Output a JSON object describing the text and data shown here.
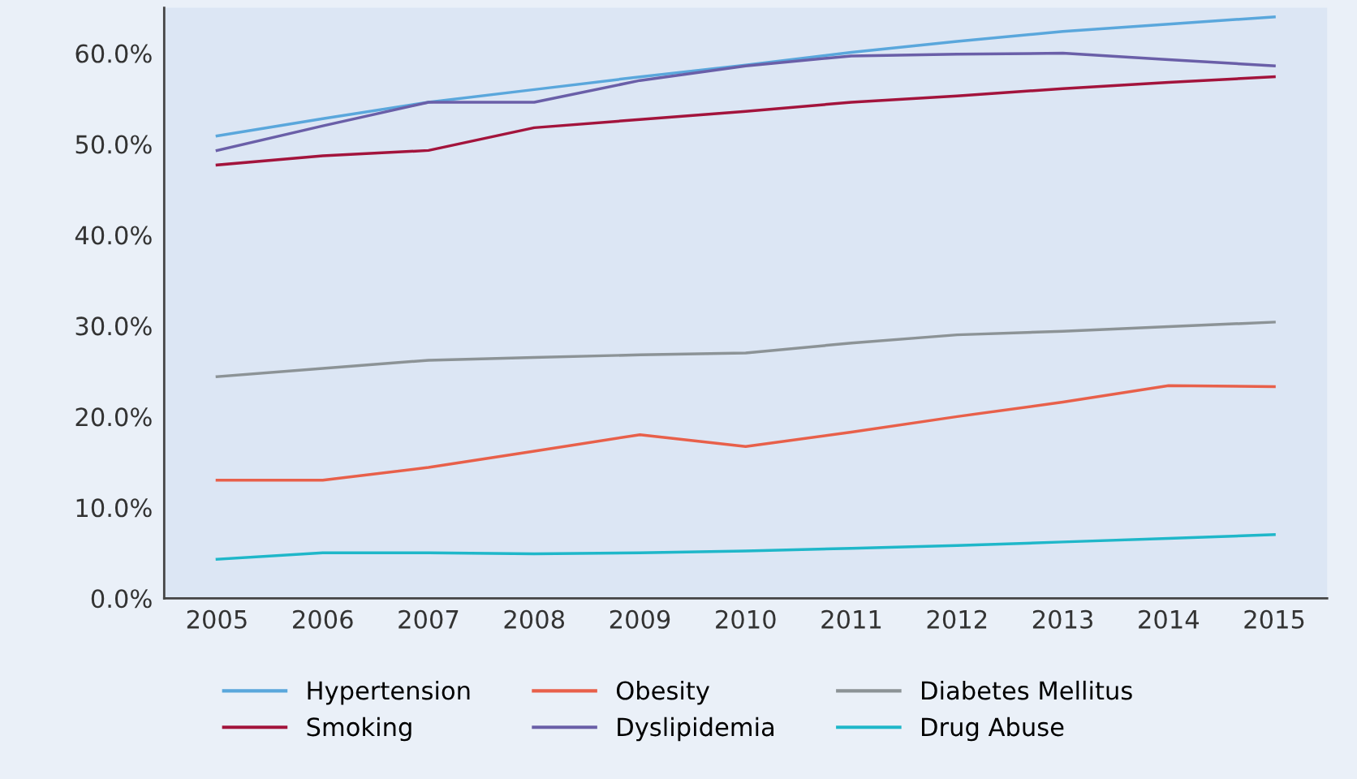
{
  "chart_data": {
    "type": "line",
    "categories": [
      "2005",
      "2006",
      "2007",
      "2008",
      "2009",
      "2010",
      "2011",
      "2012",
      "2013",
      "2014",
      "2015"
    ],
    "series": [
      {
        "name": "Hypertension",
        "color": "#5aa7dc",
        "values": [
          50.9,
          52.8,
          54.6,
          56.0,
          57.4,
          58.7,
          60.1,
          61.3,
          62.4,
          63.2,
          64.0
        ]
      },
      {
        "name": "Smoking",
        "color": "#a3143c",
        "values": [
          47.7,
          48.7,
          49.3,
          51.8,
          52.7,
          53.6,
          54.6,
          55.3,
          56.1,
          56.8,
          57.4
        ]
      },
      {
        "name": "Obesity",
        "color": "#e8604a",
        "values": [
          13.0,
          13.0,
          14.4,
          16.2,
          18.0,
          16.7,
          18.3,
          20.0,
          21.6,
          23.4,
          23.3
        ]
      },
      {
        "name": "Dyslipidemia",
        "color": "#6a5fa8",
        "values": [
          49.3,
          52.0,
          54.6,
          54.6,
          57.0,
          58.6,
          59.7,
          59.9,
          60.0,
          59.3,
          58.6
        ]
      },
      {
        "name": "Diabetes Mellitus",
        "color": "#8c9396",
        "values": [
          24.4,
          25.3,
          26.2,
          26.5,
          26.8,
          27.0,
          28.1,
          29.0,
          29.4,
          29.9,
          30.4
        ]
      },
      {
        "name": "Drug Abuse",
        "color": "#1fb7c9",
        "values": [
          4.3,
          5.0,
          5.0,
          4.9,
          5.0,
          5.2,
          5.5,
          5.8,
          6.2,
          6.6,
          7.0
        ]
      }
    ],
    "ylim": [
      0,
      65
    ],
    "yticks": [
      {
        "value": 0,
        "label": "0.0%"
      },
      {
        "value": 10,
        "label": "10.0%"
      },
      {
        "value": 20,
        "label": "20.0%"
      },
      {
        "value": 30,
        "label": "30.0%"
      },
      {
        "value": 40,
        "label": "40.0%"
      },
      {
        "value": 50,
        "label": "50.0%"
      },
      {
        "value": 60,
        "label": "60.0%"
      }
    ],
    "legend": "bottom",
    "marker": "none",
    "line_style": "solid"
  }
}
